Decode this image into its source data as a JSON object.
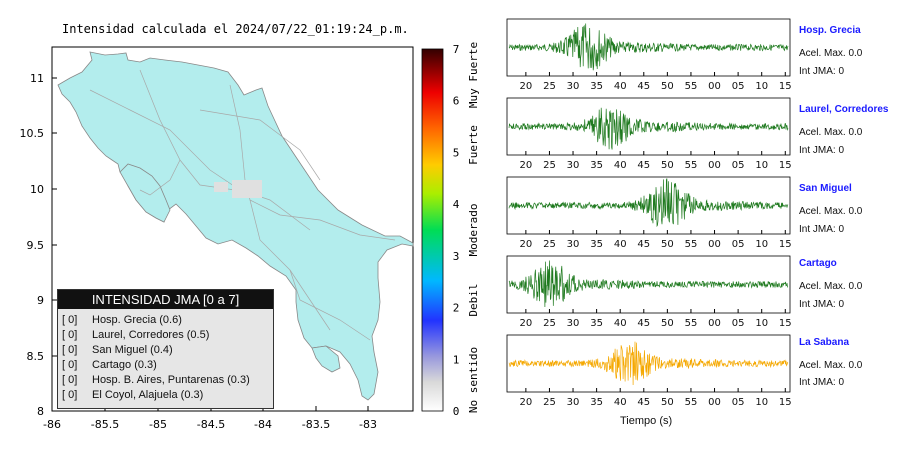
{
  "map": {
    "title": "Intensidad calculada el 2024/07/22_01:19:24_p.m.",
    "x_ticks": [
      "-86",
      "-85.5",
      "-85",
      "-84.5",
      "-84",
      "-83.5",
      "-83"
    ],
    "y_ticks": [
      "11",
      "10.5",
      "10",
      "9.5",
      "9",
      "8.5",
      "8"
    ],
    "land_color": "#b3eded"
  },
  "legend": {
    "title": "INTENSIDAD JMA [0 a 7]",
    "items": [
      {
        "level": "[ 0]",
        "label": "Hosp. Grecia (0.6)"
      },
      {
        "level": "[ 0]",
        "label": "Laurel, Corredores (0.5)"
      },
      {
        "level": "[ 0]",
        "label": "San Miguel (0.4)"
      },
      {
        "level": "[ 0]",
        "label": "Cartago (0.3)"
      },
      {
        "level": "[ 0]",
        "label": "Hosp. B. Aires, Puntarenas (0.3)"
      },
      {
        "level": "[ 0]",
        "label": "El Coyol, Alajuela (0.3)"
      }
    ]
  },
  "colorbar": {
    "ticks": [
      "0",
      "1",
      "2",
      "3",
      "4",
      "5",
      "6",
      "7"
    ],
    "labels": [
      "No sentido",
      "Debil",
      "Moderado",
      "Fuerte",
      "Muy Fuerte"
    ]
  },
  "waveforms": {
    "x_tick_labels": [
      "20",
      "25",
      "30",
      "35",
      "40",
      "45",
      "50",
      "55",
      "00",
      "05",
      "10",
      "15"
    ],
    "xlabel": "Tiempo (s)",
    "stations": [
      {
        "name": "Hosp. Grecia",
        "acel": "Acel. Max. 0.0",
        "int": "Int JMA: 0",
        "color": "#1f7a1f"
      },
      {
        "name": "Laurel, Corredores",
        "acel": "Acel. Max. 0.0",
        "int": "Int JMA: 0",
        "color": "#1f7a1f"
      },
      {
        "name": "San Miguel",
        "acel": "Acel. Max. 0.0",
        "int": "Int JMA: 0",
        "color": "#1f7a1f"
      },
      {
        "name": "Cartago",
        "acel": "Acel. Max. 0.0",
        "int": "Int JMA: 0",
        "color": "#1f7a1f"
      },
      {
        "name": "La Sabana",
        "acel": "Acel. Max. 0.0",
        "int": "Int JMA: 0",
        "color": "#f5a800"
      }
    ]
  },
  "chart_data": [
    {
      "type": "heatmap",
      "title": "Intensidad calculada el 2024/07/22_01:19:24_p.m.",
      "xlim": [
        -86,
        -82.55
      ],
      "ylim": [
        8,
        11.3
      ],
      "colorbar_range": [
        0,
        7
      ],
      "colorbar_labels": [
        "No sentido",
        "Debil",
        "Moderado",
        "Fuerte",
        "Muy Fuerte"
      ]
    },
    {
      "type": "line",
      "xlabel": "Tiempo (s)",
      "x_tick_labels": [
        "20",
        "25",
        "30",
        "35",
        "40",
        "45",
        "50",
        "55",
        "00",
        "05",
        "10",
        "15"
      ],
      "series": [
        {
          "name": "Hosp. Grecia",
          "peak_time_label": "33"
        },
        {
          "name": "Laurel, Corredores",
          "peak_time_label": "38"
        },
        {
          "name": "San Miguel",
          "peak_time_label": "50"
        },
        {
          "name": "Cartago",
          "peak_time_label": "25"
        },
        {
          "name": "La Sabana",
          "peak_time_label": "42"
        }
      ]
    }
  ]
}
